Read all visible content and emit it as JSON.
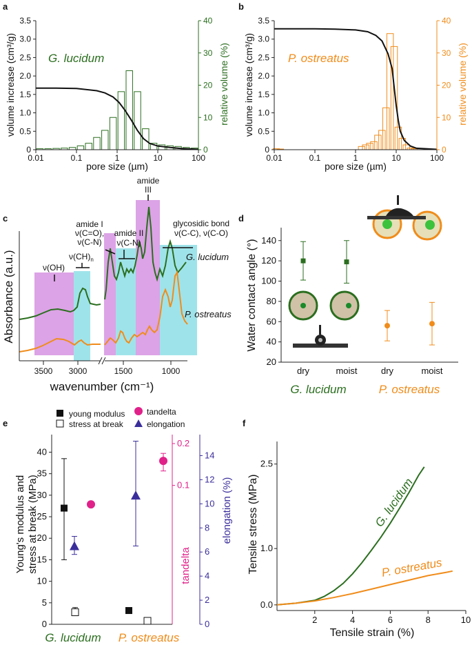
{
  "colors": {
    "green": "#2b6e1f",
    "orange": "#f08c1a",
    "black": "#111111",
    "magenta": "#e0218a",
    "navy": "#3b2e9b",
    "lavender": "#dca3e6",
    "cyan": "#9fe3ea",
    "chartpink": "#e040a0"
  },
  "chart_data": [
    {
      "id": "a",
      "label": "a",
      "type": "bar+line",
      "species": "G. lucidum",
      "xlabel": "pore size (µm)",
      "ylabel_left": "volume increase (cm³/g)",
      "ylabel_right": "relative volume (%)",
      "xticks": [
        "0.01",
        "0.1",
        "1",
        "10",
        "100"
      ],
      "yticks_left": [
        "0",
        "0.5",
        "1.0",
        "1.5",
        "2.0",
        "2.5",
        "3.0",
        "3.5"
      ],
      "yticks_right": [
        "0",
        "10",
        "20",
        "30",
        "40"
      ],
      "ylim_left": [
        0,
        3.5
      ],
      "ylim_right": [
        0,
        40
      ],
      "xlim_log10": [
        -2,
        2
      ],
      "line": {
        "x_log10": [
          -2,
          -1.5,
          -1,
          -0.5,
          -0.3,
          -0.1,
          0.05,
          0.2,
          0.35,
          0.5,
          0.65,
          0.8,
          1,
          1.3,
          1.6,
          2
        ],
        "y": [
          1.67,
          1.67,
          1.66,
          1.6,
          1.54,
          1.43,
          1.28,
          1.06,
          0.8,
          0.52,
          0.3,
          0.17,
          0.1,
          0.06,
          0.03,
          0.01
        ]
      },
      "bars": {
        "x_log10": [
          -1.9,
          -1.7,
          -1.5,
          -1.3,
          -1.1,
          -0.9,
          -0.7,
          -0.5,
          -0.3,
          -0.1,
          0.1,
          0.3,
          0.5,
          0.7,
          0.9,
          1.1,
          1.3,
          1.5,
          1.7,
          1.9
        ],
        "values": [
          0.3,
          0.3,
          0.4,
          0.5,
          0.7,
          1.2,
          2,
          3.8,
          6,
          10,
          18,
          24.5,
          18,
          6.5,
          2,
          1.5,
          1.2,
          1,
          0.7,
          0.5
        ]
      }
    },
    {
      "id": "b",
      "label": "b",
      "type": "bar+line",
      "species": "P. ostreatus",
      "xlabel": "pore size (µm)",
      "ylabel_left": "volume increase (cm³/g)",
      "ylabel_right": "relative volume (%)",
      "xticks": [
        "0.01",
        "0.1",
        "1",
        "10",
        "100"
      ],
      "yticks_left": [
        "0",
        "0.5",
        "1.0",
        "1.5",
        "2.0",
        "2.5",
        "3.0",
        "3.5"
      ],
      "yticks_right": [
        "0",
        "10",
        "20",
        "30",
        "40"
      ],
      "ylim_left": [
        0,
        3.5
      ],
      "ylim_right": [
        0,
        40
      ],
      "xlim_log10": [
        -2,
        2
      ],
      "line": {
        "x_log10": [
          -2,
          -1,
          -0.5,
          0,
          0.3,
          0.5,
          0.65,
          0.8,
          0.9,
          0.95,
          1.0,
          1.05,
          1.1,
          1.2,
          1.35,
          1.5,
          2
        ],
        "y": [
          3.28,
          3.28,
          3.27,
          3.25,
          3.2,
          3.1,
          2.95,
          2.6,
          2.2,
          1.7,
          1.2,
          0.8,
          0.5,
          0.25,
          0.1,
          0.04,
          0.01
        ]
      },
      "bars": {
        "x_log10": [
          -1.95,
          -1.85,
          0.15,
          0.25,
          0.35,
          0.45,
          0.55,
          0.65,
          0.75,
          0.85,
          0.95,
          1.05,
          1.15,
          1.25,
          1.35,
          1.45
        ],
        "values": [
          0.3,
          0.2,
          1,
          1.5,
          2,
          2.5,
          4.5,
          6,
          13,
          36,
          32,
          7,
          3.5,
          1.5,
          0.5,
          0.3
        ]
      }
    },
    {
      "id": "c",
      "label": "c",
      "type": "line",
      "xlabel": "wavenumber (cm⁻¹)",
      "ylabel": "Absorbance (a.u.)",
      "xticks": [
        "3500",
        "3000",
        "1500",
        "1000"
      ],
      "series": [
        {
          "name": "G. lucidum"
        },
        {
          "name": "P. ostreatus"
        }
      ],
      "bands": [
        {
          "label": "ν(OH)",
          "color": "lavender"
        },
        {
          "label": "ν(CH)ₙ",
          "color": "cyan"
        },
        {
          "label": "amide I ν(C=O), ν(C-N)",
          "color": "lavender"
        },
        {
          "label": "amide II ν(C-N)",
          "color": "cyan"
        },
        {
          "label": "amide III",
          "color": "lavender"
        },
        {
          "label": "glycosidic bond ν(C-C), ν(C-O)",
          "color": "cyan"
        }
      ],
      "annotations": {
        "amide_i": "amide I",
        "amide_i_sub": "ν(C=O),",
        "amide_i_sub2": "ν(C-N)",
        "amide_ii": "amide II",
        "amide_ii_sub": "ν(C-N)",
        "amide_iii": "amide",
        "amide_iii_sub": "III",
        "glyco": "glycosidic bond",
        "glyco_sub": "ν(C-C), ν(C-O)",
        "oh": "ν(OH)",
        "ch": "ν(CH)",
        "ch_sub": "n"
      }
    },
    {
      "id": "d",
      "label": "d",
      "type": "scatter",
      "ylabel": "Water contact angle (°)",
      "yticks": [
        "20",
        "40",
        "60",
        "80",
        "100",
        "120",
        "140"
      ],
      "ylim": [
        20,
        148
      ],
      "categories": [
        "dry",
        "moist",
        "dry",
        "moist"
      ],
      "groups": [
        "G. lucidum",
        "P. ostreatus"
      ],
      "points": [
        {
          "group": "G. lucidum",
          "cat": "dry",
          "y": 120,
          "err": [
            101,
            139
          ]
        },
        {
          "group": "G. lucidum",
          "cat": "moist",
          "y": 119,
          "err": [
            98,
            140
          ]
        },
        {
          "group": "P. ostreatus",
          "cat": "dry",
          "y": 56,
          "err": [
            41,
            71
          ]
        },
        {
          "group": "P. ostreatus",
          "cat": "moist",
          "y": 58,
          "err": [
            37,
            79
          ]
        }
      ]
    },
    {
      "id": "e",
      "label": "e",
      "type": "scatter",
      "ylabel_left": "Young's modulus and stress at break (MPa)",
      "ylabel_mid": "tandelta",
      "ylabel_right": "elongation (%)",
      "yticks_left": [
        "0",
        "5",
        "10",
        "15",
        "20",
        "25",
        "30",
        "35",
        "40"
      ],
      "ylim_left": [
        0,
        42
      ],
      "yticks_mid": [
        "0.1",
        "0.2"
      ],
      "ylim_mid_log": [
        0.01,
        0.2
      ],
      "yticks_right": [
        "0",
        "2",
        "4",
        "6",
        "8",
        "10",
        "12",
        "14"
      ],
      "ylim_right": [
        0,
        15
      ],
      "legend": [
        "young modulus",
        "stress at break",
        "tandelta",
        "elongation"
      ],
      "groups": [
        "G. lucidum",
        "P. ostreatus"
      ],
      "young_modulus": [
        {
          "v": 27,
          "err": [
            15,
            38.5
          ]
        },
        {
          "v": 3.2,
          "err": null
        }
      ],
      "stress_at_break": [
        {
          "v": 2.8,
          "err": [
            2,
            3.9
          ]
        },
        {
          "v": 0.8,
          "err": null
        }
      ],
      "tandelta": [
        {
          "v": 0.073,
          "err": null
        },
        {
          "v": 0.15,
          "err": [
            0.127,
            0.17
          ]
        }
      ],
      "elongation": [
        {
          "v": 6.5,
          "err": [
            5.8,
            7.3
          ]
        },
        {
          "v": 10.7,
          "err": [
            6.5,
            15.2
          ]
        }
      ]
    },
    {
      "id": "f",
      "label": "f",
      "type": "line",
      "xlabel": "Tensile strain (%)",
      "ylabel": "Tensile stress (MPa)",
      "xticks": [
        "2",
        "4",
        "6",
        "8",
        "10"
      ],
      "yticks": [
        "0.0",
        "1.0",
        "2.5"
      ],
      "xlim": [
        0,
        10
      ],
      "ylim": [
        -0.1,
        2.9
      ],
      "series": [
        {
          "name": "G. lucidum",
          "x": [
            0,
            1,
            2,
            2.5,
            3,
            3.5,
            4,
            4.5,
            5,
            5.5,
            6,
            6.5,
            7,
            7.5,
            7.8
          ],
          "y": [
            0,
            0.03,
            0.08,
            0.15,
            0.25,
            0.38,
            0.55,
            0.75,
            0.97,
            1.2,
            1.45,
            1.72,
            2.0,
            2.3,
            2.45
          ]
        },
        {
          "name": "P. ostreatus",
          "x": [
            0,
            1,
            2,
            3,
            4,
            5,
            6,
            7,
            8,
            9,
            9.3
          ],
          "y": [
            0,
            0.03,
            0.07,
            0.13,
            0.2,
            0.28,
            0.36,
            0.44,
            0.52,
            0.58,
            0.6
          ]
        }
      ]
    }
  ]
}
